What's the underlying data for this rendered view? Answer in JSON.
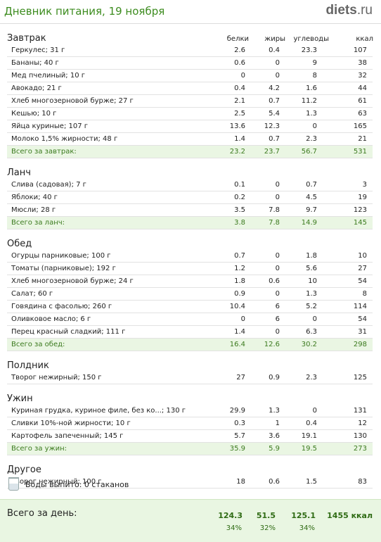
{
  "header": {
    "title": "Дневник питания, 19 ноября",
    "logo_main": "diets",
    "logo_tld": ".ru"
  },
  "columns": {
    "protein": "белки",
    "fat": "жиры",
    "carbs": "углеводы",
    "kcal": "ккал"
  },
  "sections": [
    {
      "title": "Завтрак",
      "show_columns": true,
      "rows": [
        {
          "name": "Геркулес; 31 г",
          "p": "2.6",
          "f": "0.4",
          "c": "23.3",
          "k": "107"
        },
        {
          "name": "Бананы; 40 г",
          "p": "0.6",
          "f": "0",
          "c": "9",
          "k": "38"
        },
        {
          "name": "Мед пчелиный; 10 г",
          "p": "0",
          "f": "0",
          "c": "8",
          "k": "32"
        },
        {
          "name": "Авокадо; 21 г",
          "p": "0.4",
          "f": "4.2",
          "c": "1.6",
          "k": "44"
        },
        {
          "name": "Хлеб многозерновой бурже; 27 г",
          "p": "2.1",
          "f": "0.7",
          "c": "11.2",
          "k": "61"
        },
        {
          "name": "Кешью; 10 г",
          "p": "2.5",
          "f": "5.4",
          "c": "1.3",
          "k": "63"
        },
        {
          "name": "Яйца куриные; 107 г",
          "p": "13.6",
          "f": "12.3",
          "c": "0",
          "k": "165"
        },
        {
          "name": "Молоко 1,5% жирности; 48 г",
          "p": "1.4",
          "f": "0.7",
          "c": "2.3",
          "k": "21"
        }
      ],
      "total": {
        "name": "Всего за завтрак:",
        "p": "23.2",
        "f": "23.7",
        "c": "56.7",
        "k": "531"
      }
    },
    {
      "title": "Ланч",
      "rows": [
        {
          "name": "Слива (садовая); 7 г",
          "p": "0.1",
          "f": "0",
          "c": "0.7",
          "k": "3"
        },
        {
          "name": "Яблоки; 40 г",
          "p": "0.2",
          "f": "0",
          "c": "4.5",
          "k": "19"
        },
        {
          "name": "Мюсли; 28 г",
          "p": "3.5",
          "f": "7.8",
          "c": "9.7",
          "k": "123"
        }
      ],
      "total": {
        "name": "Всего за ланч:",
        "p": "3.8",
        "f": "7.8",
        "c": "14.9",
        "k": "145"
      }
    },
    {
      "title": "Обед",
      "rows": [
        {
          "name": "Огурцы парниковые; 100 г",
          "p": "0.7",
          "f": "0",
          "c": "1.8",
          "k": "10"
        },
        {
          "name": "Томаты (парниковые); 192 г",
          "p": "1.2",
          "f": "0",
          "c": "5.6",
          "k": "27"
        },
        {
          "name": "Хлеб многозерновой бурже; 24 г",
          "p": "1.8",
          "f": "0.6",
          "c": "10",
          "k": "54"
        },
        {
          "name": "Салат; 60 г",
          "p": "0.9",
          "f": "0",
          "c": "1.3",
          "k": "8"
        },
        {
          "name": "Говядина с фасолью; 260 г",
          "p": "10.4",
          "f": "6",
          "c": "5.2",
          "k": "114"
        },
        {
          "name": "Оливковое масло; 6 г",
          "p": "0",
          "f": "6",
          "c": "0",
          "k": "54"
        },
        {
          "name": "Перец красный сладкий; 111 г",
          "p": "1.4",
          "f": "0",
          "c": "6.3",
          "k": "31"
        }
      ],
      "total": {
        "name": "Всего за обед:",
        "p": "16.4",
        "f": "12.6",
        "c": "30.2",
        "k": "298"
      }
    },
    {
      "title": "Полдник",
      "rows": [
        {
          "name": "Творог нежирный; 150 г",
          "p": "27",
          "f": "0.9",
          "c": "2.3",
          "k": "125"
        }
      ]
    },
    {
      "title": "Ужин",
      "rows": [
        {
          "name": "Куриная грудка, куриное филе, без ко...; 130 г",
          "p": "29.9",
          "f": "1.3",
          "c": "0",
          "k": "131"
        },
        {
          "name": "Сливки 10%-ной жирности; 10 г",
          "p": "0.3",
          "f": "1",
          "c": "0.4",
          "k": "12"
        },
        {
          "name": "Картофель запеченный; 145 г",
          "p": "5.7",
          "f": "3.6",
          "c": "19.1",
          "k": "130"
        }
      ],
      "total": {
        "name": "Всего за ужин:",
        "p": "35.9",
        "f": "5.9",
        "c": "19.5",
        "k": "273"
      }
    },
    {
      "title": "Другое",
      "rows": [
        {
          "name": "Творог нежирный; 100 г",
          "p": "18",
          "f": "0.6",
          "c": "1.5",
          "k": "83"
        }
      ]
    }
  ],
  "water": {
    "text": "Воды выпито: 0 стаканов",
    "icon": "glass-icon"
  },
  "day_total": {
    "label": "Всего за день:",
    "protein": "124.3",
    "fat": "51.5",
    "carbs": "125.1",
    "kcal": "1455 ккал",
    "protein_pct": "34%",
    "fat_pct": "32%",
    "carbs_pct": "34%"
  },
  "colors": {
    "accent": "#3d8c1f",
    "total_bg": "#eaf6e3",
    "total_text": "#3b7a1e"
  }
}
